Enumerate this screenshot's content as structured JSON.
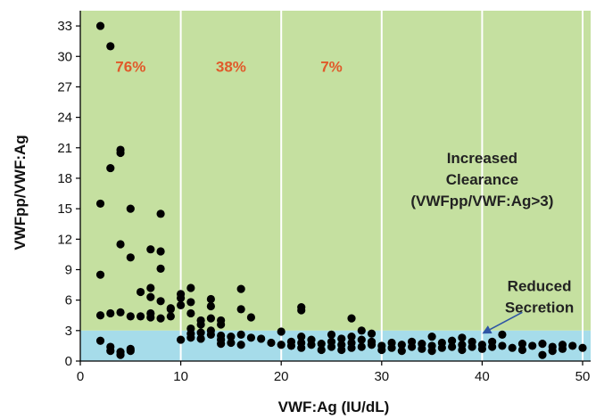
{
  "chart_data": {
    "type": "scatter",
    "title": "",
    "xlabel": "VWF:Ag (IU/dL)",
    "ylabel": "VWFpp/VWF:Ag",
    "xlim": [
      0,
      50.8
    ],
    "ylim": [
      0,
      34.5
    ],
    "x_ticks": [
      "0",
      "10",
      "20",
      "30",
      "40",
      "50"
    ],
    "y_ticks": [
      "0",
      "3",
      "6",
      "9",
      "12",
      "15",
      "18",
      "21",
      "24",
      "27",
      "30",
      "33"
    ],
    "grid": "vertical",
    "colors": {
      "increased_region": "#c5e0a0",
      "reduced_region": "#a6dcea",
      "points": "#000000",
      "percent_text": "#e05a2b",
      "arrow": "#2e55a5"
    },
    "regions": [
      {
        "name": "increased-clearance",
        "y_from": 3,
        "y_to": 34.5,
        "color": "#c5e0a0"
      },
      {
        "name": "reduced-secretion",
        "y_from": 0,
        "y_to": 3,
        "color": "#a6dcea"
      }
    ],
    "percent_labels": [
      {
        "text": "76%",
        "x": 5,
        "y": 28.5
      },
      {
        "text": "38%",
        "x": 15,
        "y": 28.5
      },
      {
        "text": "7%",
        "x": 25,
        "y": 28.5
      }
    ],
    "annotations": [
      {
        "lines": [
          "Increased",
          "Clearance",
          "(VWFpp/VWF:Ag>3)"
        ],
        "x": 40,
        "y": 19.5
      },
      {
        "lines": [
          "Reduced",
          "Secretion"
        ],
        "x": 45.7,
        "y": 6.9
      }
    ],
    "arrow": {
      "from": [
        44,
        4.8
      ],
      "to": [
        40,
        2.7
      ]
    },
    "points": [
      [
        2,
        33
      ],
      [
        3,
        31
      ],
      [
        4,
        20.8
      ],
      [
        4,
        20.5
      ],
      [
        3,
        19
      ],
      [
        2,
        15.5
      ],
      [
        5,
        15
      ],
      [
        8,
        14.5
      ],
      [
        4,
        11.5
      ],
      [
        7,
        11
      ],
      [
        8,
        10.8
      ],
      [
        5,
        10.2
      ],
      [
        8,
        9.1
      ],
      [
        2,
        8.5
      ],
      [
        7,
        7.2
      ],
      [
        6,
        6.8
      ],
      [
        7,
        6.3
      ],
      [
        8,
        5.9
      ],
      [
        9,
        5.1
      ],
      [
        10,
        6.6
      ],
      [
        10,
        6.2
      ],
      [
        10,
        5.5
      ],
      [
        11,
        7.2
      ],
      [
        11,
        5.8
      ],
      [
        11,
        4.7
      ],
      [
        12,
        4
      ],
      [
        12,
        3.6
      ],
      [
        13,
        6.1
      ],
      [
        13,
        5.4
      ],
      [
        13,
        4.2
      ],
      [
        14,
        4
      ],
      [
        14,
        3.6
      ],
      [
        16,
        7.1
      ],
      [
        16,
        5.1
      ],
      [
        17,
        4.3
      ],
      [
        22,
        5.3
      ],
      [
        22,
        5.0
      ],
      [
        27,
        4.2
      ],
      [
        2,
        4.5
      ],
      [
        3,
        4.7
      ],
      [
        4,
        4.8
      ],
      [
        5,
        4.4
      ],
      [
        6,
        4.4
      ],
      [
        7,
        4.3
      ],
      [
        7,
        4.7
      ],
      [
        8,
        4.2
      ],
      [
        9,
        4.4
      ],
      [
        9,
        5.2
      ],
      [
        2,
        2.0
      ],
      [
        3,
        1.4
      ],
      [
        3,
        1.0
      ],
      [
        4,
        0.6
      ],
      [
        4,
        0.9
      ],
      [
        5,
        1.0
      ],
      [
        5,
        1.2
      ],
      [
        10,
        2.1
      ],
      [
        11,
        2.3
      ],
      [
        11,
        2.7
      ],
      [
        11,
        3.2
      ],
      [
        12,
        2.2
      ],
      [
        12,
        2.8
      ],
      [
        13,
        2.6
      ],
      [
        13,
        3.0
      ],
      [
        14,
        2.1
      ],
      [
        14,
        2.5
      ],
      [
        14,
        1.7
      ],
      [
        15,
        2.4
      ],
      [
        15,
        1.8
      ],
      [
        16,
        2.6
      ],
      [
        16,
        1.6
      ],
      [
        17,
        2.3
      ],
      [
        18,
        2.2
      ],
      [
        19,
        1.8
      ],
      [
        20,
        2.9
      ],
      [
        20,
        1.6
      ],
      [
        21,
        1.9
      ],
      [
        21,
        1.5
      ],
      [
        22,
        2.4
      ],
      [
        22,
        1.8
      ],
      [
        22,
        1.3
      ],
      [
        23,
        2.1
      ],
      [
        23,
        1.6
      ],
      [
        24,
        1.7
      ],
      [
        24,
        1.1
      ],
      [
        25,
        2.6
      ],
      [
        25,
        1.9
      ],
      [
        25,
        1.4
      ],
      [
        26,
        2.2
      ],
      [
        26,
        1.6
      ],
      [
        26,
        1.1
      ],
      [
        27,
        1.8
      ],
      [
        27,
        1.3
      ],
      [
        27,
        2.4
      ],
      [
        28,
        3.0
      ],
      [
        28,
        2.1
      ],
      [
        28,
        1.4
      ],
      [
        29,
        2.7
      ],
      [
        29,
        1.6
      ],
      [
        29,
        1.9
      ],
      [
        30,
        1.5
      ],
      [
        30,
        1.1
      ],
      [
        31,
        1.8
      ],
      [
        31,
        1.3
      ],
      [
        32,
        1.6
      ],
      [
        32,
        1.0
      ],
      [
        33,
        1.4
      ],
      [
        33,
        1.9
      ],
      [
        34,
        1.7
      ],
      [
        34,
        1.2
      ],
      [
        35,
        2.4
      ],
      [
        35,
        1.5
      ],
      [
        35,
        1.0
      ],
      [
        36,
        1.8
      ],
      [
        36,
        1.3
      ],
      [
        37,
        2.0
      ],
      [
        37,
        1.4
      ],
      [
        38,
        2.3
      ],
      [
        38,
        1.6
      ],
      [
        38,
        1.1
      ],
      [
        39,
        1.9
      ],
      [
        39,
        1.4
      ],
      [
        40,
        1.6
      ],
      [
        40,
        1.2
      ],
      [
        41,
        1.9
      ],
      [
        41,
        1.4
      ],
      [
        42,
        2.6
      ],
      [
        42,
        1.5
      ],
      [
        43,
        1.3
      ],
      [
        44,
        1.7
      ],
      [
        44,
        1.1
      ],
      [
        45,
        1.5
      ],
      [
        46,
        1.7
      ],
      [
        46,
        0.6
      ],
      [
        47,
        1.4
      ],
      [
        47,
        1.0
      ],
      [
        48,
        1.6
      ],
      [
        48,
        1.2
      ],
      [
        49,
        1.5
      ],
      [
        50,
        1.3
      ]
    ]
  }
}
